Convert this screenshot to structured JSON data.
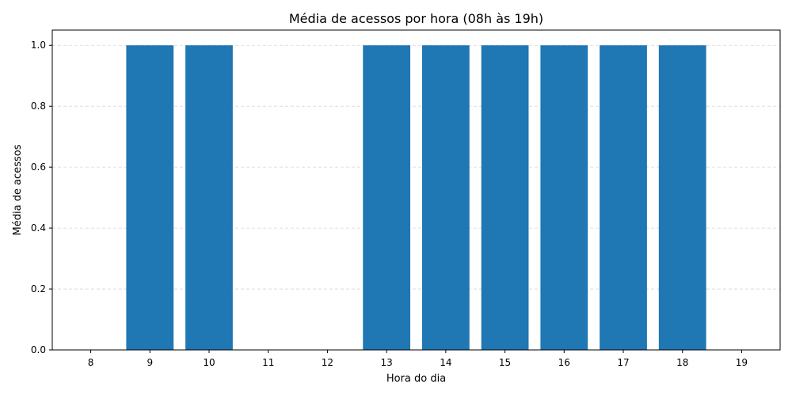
{
  "chart_data": {
    "type": "bar",
    "title": "Média de acessos por hora (08h às 19h)",
    "xlabel": "Hora do dia",
    "ylabel": "Média de acessos",
    "categories": [
      "8",
      "9",
      "10",
      "11",
      "12",
      "13",
      "14",
      "15",
      "16",
      "17",
      "18",
      "19"
    ],
    "values": [
      0,
      1,
      1,
      0,
      0,
      1,
      1,
      1,
      1,
      1,
      1,
      0
    ],
    "ylim": [
      0,
      1.05
    ],
    "yticks": [
      "0.0",
      "0.2",
      "0.4",
      "0.6",
      "0.8",
      "1.0"
    ],
    "grid": "y dashed",
    "bar_color": "#1f77b4"
  }
}
